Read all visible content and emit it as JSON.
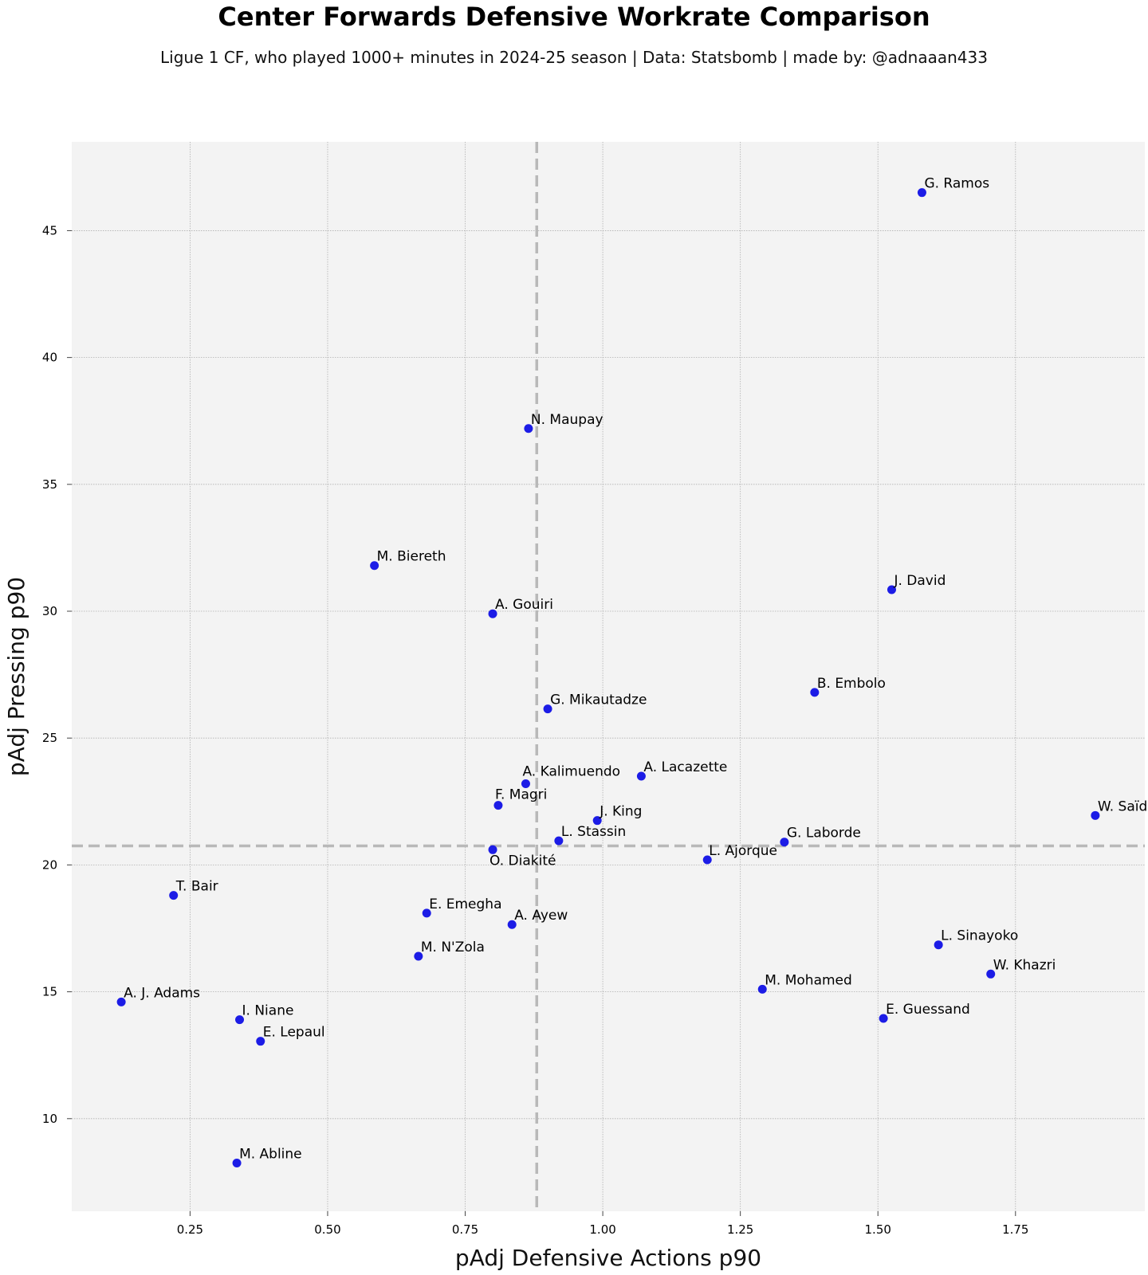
{
  "chart_data": {
    "type": "scatter",
    "title": "Center Forwards Defensive Workrate Comparison",
    "subtitle": "Ligue 1 CF, who played 1000+ minutes in 2024-25 season  |  Data: Statsbomb  |  made by: @adnaaan433",
    "xlabel": "pAdj Defensive Actions p90",
    "ylabel": "pAdj Pressing p90",
    "xlim": [
      0.035,
      1.985
    ],
    "ylim": [
      6.35,
      48.5
    ],
    "xticks": [
      "0.25",
      "0.50",
      "0.75",
      "1.00",
      "1.25",
      "1.50",
      "1.75"
    ],
    "yticks": [
      "10",
      "15",
      "20",
      "25",
      "30",
      "35",
      "40",
      "45"
    ],
    "grid": true,
    "reference_lines": {
      "x_mean": 0.88,
      "y_mean": 20.75
    },
    "point_color": "#1c1ce6",
    "points": [
      {
        "name": "G. Ramos",
        "x": 1.58,
        "y": 46.5
      },
      {
        "name": "N. Maupay",
        "x": 0.865,
        "y": 37.2
      },
      {
        "name": "M. Biereth",
        "x": 0.585,
        "y": 31.8
      },
      {
        "name": "J. David",
        "x": 1.525,
        "y": 30.85
      },
      {
        "name": "A. Gouiri",
        "x": 0.8,
        "y": 29.9
      },
      {
        "name": "B. Embolo",
        "x": 1.385,
        "y": 26.8
      },
      {
        "name": "G. Mikautadze",
        "x": 0.9,
        "y": 26.15
      },
      {
        "name": "A. Kalimuendo",
        "x": 0.86,
        "y": 23.2
      },
      {
        "name": "A. Lacazette",
        "x": 1.07,
        "y": 23.5
      },
      {
        "name": "F. Magri",
        "x": 0.81,
        "y": 22.35
      },
      {
        "name": "J. King",
        "x": 0.99,
        "y": 21.75
      },
      {
        "name": "W. Saïd",
        "x": 1.895,
        "y": 21.95
      },
      {
        "name": "L. Stassin",
        "x": 0.92,
        "y": 20.95
      },
      {
        "name": "G. Laborde",
        "x": 1.33,
        "y": 20.9
      },
      {
        "name": "O. Diakité",
        "x": 0.8,
        "y": 20.6
      },
      {
        "name": "L. Ajorque",
        "x": 1.19,
        "y": 20.2
      },
      {
        "name": "T. Bair",
        "x": 0.22,
        "y": 18.8
      },
      {
        "name": "E. Emegha",
        "x": 0.68,
        "y": 18.1
      },
      {
        "name": "A. Ayew",
        "x": 0.835,
        "y": 17.65
      },
      {
        "name": "L. Sinayoko",
        "x": 1.61,
        "y": 16.85
      },
      {
        "name": "M. N'Zola",
        "x": 0.665,
        "y": 16.4
      },
      {
        "name": "W. Khazri",
        "x": 1.705,
        "y": 15.7
      },
      {
        "name": "M. Mohamed",
        "x": 1.29,
        "y": 15.1
      },
      {
        "name": "A. J. Adams",
        "x": 0.125,
        "y": 14.6
      },
      {
        "name": "E. Guessand",
        "x": 1.51,
        "y": 13.95
      },
      {
        "name": "I. Niane",
        "x": 0.34,
        "y": 13.9
      },
      {
        "name": "E. Lepaul",
        "x": 0.378,
        "y": 13.05
      },
      {
        "name": "M. Abline",
        "x": 0.335,
        "y": 8.25
      }
    ]
  }
}
